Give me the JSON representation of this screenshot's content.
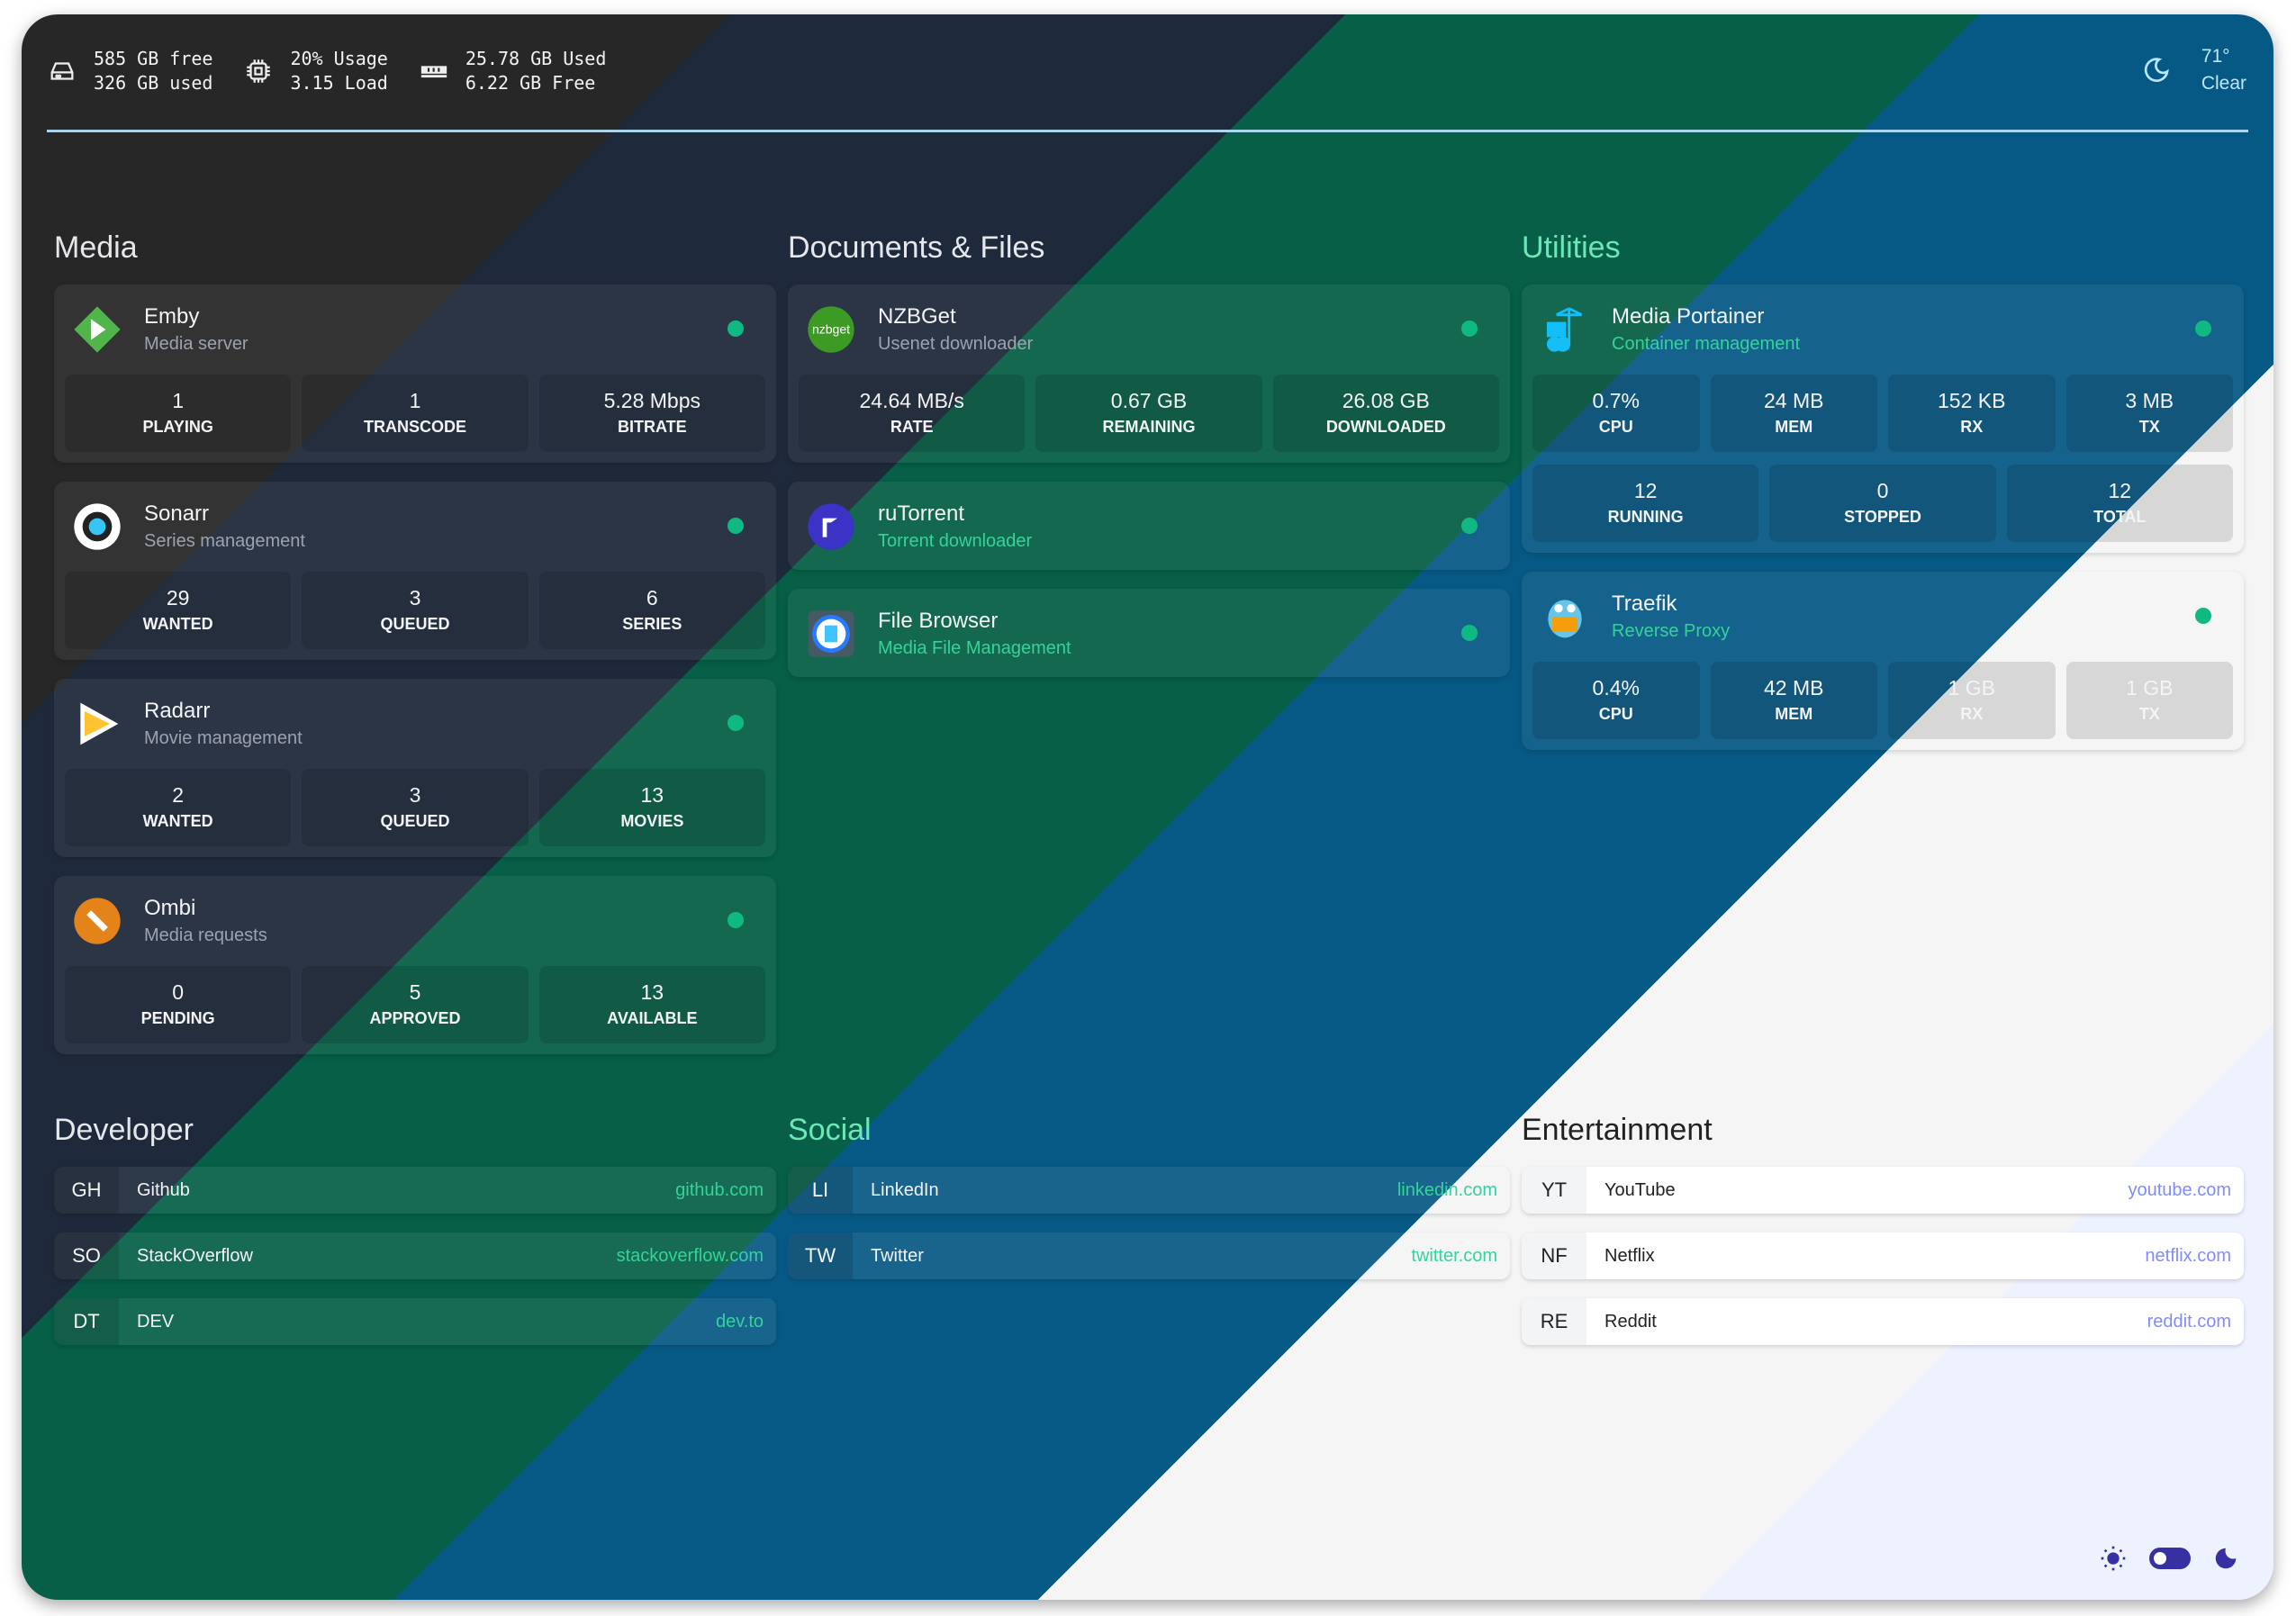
{
  "header": {
    "disk": {
      "icon": "hard-drive-icon",
      "line1": "585 GB free",
      "line2": "326 GB used"
    },
    "cpu": {
      "icon": "cpu-icon",
      "line1": "20% Usage",
      "line2": "3.15 Load"
    },
    "memory": {
      "icon": "memory-icon",
      "line1": "25.78 GB Used",
      "line2": "6.22 GB Free"
    },
    "weather": {
      "icon": "moon-icon",
      "temp": "71°",
      "condition": "Clear"
    }
  },
  "services": [
    {
      "title": "Media",
      "items": [
        {
          "name": "Emby",
          "desc": "Media server",
          "icon": "emby-icon",
          "stats": [
            [
              "1",
              "Playing"
            ],
            [
              "1",
              "Transcode"
            ],
            [
              "5.28 Mbps",
              "Bitrate"
            ]
          ]
        },
        {
          "name": "Sonarr",
          "desc": "Series management",
          "icon": "sonarr-icon",
          "stats": [
            [
              "29",
              "Wanted"
            ],
            [
              "3",
              "Queued"
            ],
            [
              "6",
              "Series"
            ]
          ]
        },
        {
          "name": "Radarr",
          "desc": "Movie management",
          "icon": "radarr-icon",
          "stats": [
            [
              "2",
              "Wanted"
            ],
            [
              "3",
              "Queued"
            ],
            [
              "13",
              "Movies"
            ]
          ]
        },
        {
          "name": "Ombi",
          "desc": "Media requests",
          "icon": "ombi-icon",
          "stats": [
            [
              "0",
              "Pending"
            ],
            [
              "5",
              "Approved"
            ],
            [
              "13",
              "Available"
            ]
          ]
        }
      ]
    },
    {
      "title": "Documents & Files",
      "items": [
        {
          "name": "NZBGet",
          "desc": "Usenet downloader",
          "icon": "nzbget-icon",
          "stats": [
            [
              "24.64 MB/s",
              "Rate"
            ],
            [
              "0.67 GB",
              "Remaining"
            ],
            [
              "26.08 GB",
              "Downloaded"
            ]
          ]
        },
        {
          "name": "ruTorrent",
          "desc": "Torrent downloader",
          "icon": "rutorrent-icon",
          "stats": []
        },
        {
          "name": "File Browser",
          "desc": "Media File Management",
          "icon": "filebrowser-icon",
          "stats": []
        }
      ]
    },
    {
      "title": "Utilities",
      "items": [
        {
          "name": "Media Portainer",
          "desc": "Container management",
          "icon": "portainer-icon",
          "stats": [
            [
              "0.7%",
              "CPU"
            ],
            [
              "24 MB",
              "Mem"
            ],
            [
              "152 KB",
              "RX"
            ],
            [
              "3 MB",
              "TX"
            ]
          ],
          "stats2": [
            [
              "12",
              "Running"
            ],
            [
              "0",
              "Stopped"
            ],
            [
              "12",
              "Total"
            ]
          ]
        },
        {
          "name": "Traefik",
          "desc": "Reverse Proxy",
          "icon": "traefik-icon",
          "stats": [
            [
              "0.4%",
              "CPU"
            ],
            [
              "42 MB",
              "Mem"
            ],
            [
              "1 GB",
              "RX"
            ],
            [
              "1 GB",
              "TX"
            ]
          ]
        }
      ]
    }
  ],
  "bookmarks": [
    {
      "title": "Developer",
      "items": [
        [
          "GH",
          "Github",
          "github.com"
        ],
        [
          "SO",
          "StackOverflow",
          "stackoverflow.com"
        ],
        [
          "DT",
          "DEV",
          "dev.to"
        ]
      ]
    },
    {
      "title": "Social",
      "items": [
        [
          "LI",
          "LinkedIn",
          "linkedin.com"
        ],
        [
          "TW",
          "Twitter",
          "twitter.com"
        ]
      ]
    },
    {
      "title": "Entertainment",
      "items": [
        [
          "YT",
          "YouTube",
          "youtube.com"
        ],
        [
          "NF",
          "Netflix",
          "netflix.com"
        ],
        [
          "RE",
          "Reddit",
          "reddit.com"
        ]
      ]
    }
  ],
  "theme": {
    "mode": "dark",
    "accent": "#3730a3",
    "status_online": "#10b981"
  }
}
